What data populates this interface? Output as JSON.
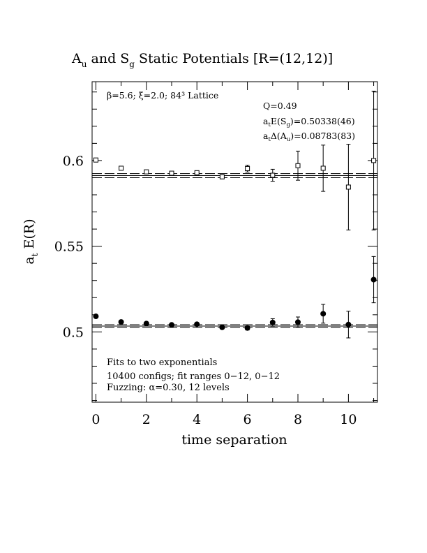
{
  "chart_data": {
    "type": "scatter",
    "title": {
      "main": "A",
      "sub1": "u",
      "mid": " and S",
      "sub2": "g",
      "tail": " Static Potentials [R=(12,12)]"
    },
    "xlabel": "time separation",
    "ylabel": {
      "a": "a",
      "sub": "t",
      "rest": " E(R)"
    },
    "xlim": [
      -0.15,
      11.15
    ],
    "ylim": [
      0.459,
      0.646
    ],
    "x_ticks": [
      "0",
      "2",
      "4",
      "6",
      "8",
      "10"
    ],
    "y_ticks": [
      "0.5",
      "0.55",
      "0.6"
    ],
    "annotations": {
      "lattice": "β=5.6; ξ=2.0; 84³ Lattice",
      "q": "Q=0.49",
      "energy_label": "a",
      "energy_sub1": "t",
      "energy_mid": "E(S",
      "energy_sub2": "g",
      "energy_value": ")=0.50338(46)",
      "delta_label": "a",
      "delta_sub1": "t",
      "delta_mid": "Δ(A",
      "delta_sub2": "u",
      "delta_value": ")=0.08783(83)",
      "fits": "Fits to two exponentials",
      "configs": "10400 configs; fit ranges 0−12, 0−12",
      "fuzzing": "Fuzzing: α=0.30, 12 levels"
    },
    "fit_lines": [
      {
        "name": "Sg",
        "center": 0.5034,
        "err": 0.0008
      },
      {
        "name": "Au",
        "center": 0.5912,
        "err": 0.0012
      }
    ],
    "series": [
      {
        "name": "Au",
        "marker": "open-square",
        "x": [
          0,
          1,
          2,
          3,
          4,
          5,
          6,
          7,
          8,
          9,
          10,
          11
        ],
        "y": [
          0.6003,
          0.5955,
          0.5934,
          0.5926,
          0.5929,
          0.5905,
          0.5953,
          0.5914,
          0.597,
          0.5955,
          0.5845,
          0.6
        ],
        "err": [
          0.0006,
          0.0007,
          0.0009,
          0.0008,
          0.001,
          0.0012,
          0.002,
          0.0035,
          0.0085,
          0.0135,
          0.025,
          0.0405
        ]
      },
      {
        "name": "Sg",
        "marker": "filled-circle",
        "x": [
          0,
          1,
          2,
          3,
          4,
          5,
          6,
          7,
          8,
          9,
          10,
          11
        ],
        "y": [
          0.5091,
          0.5058,
          0.5049,
          0.5041,
          0.5045,
          0.5027,
          0.5023,
          0.5055,
          0.5057,
          0.5106,
          0.5043,
          0.5305
        ],
        "err": [
          0.0005,
          0.0006,
          0.0006,
          0.0006,
          0.0007,
          0.0009,
          0.0012,
          0.0022,
          0.003,
          0.0055,
          0.0078,
          0.0135
        ]
      }
    ]
  }
}
